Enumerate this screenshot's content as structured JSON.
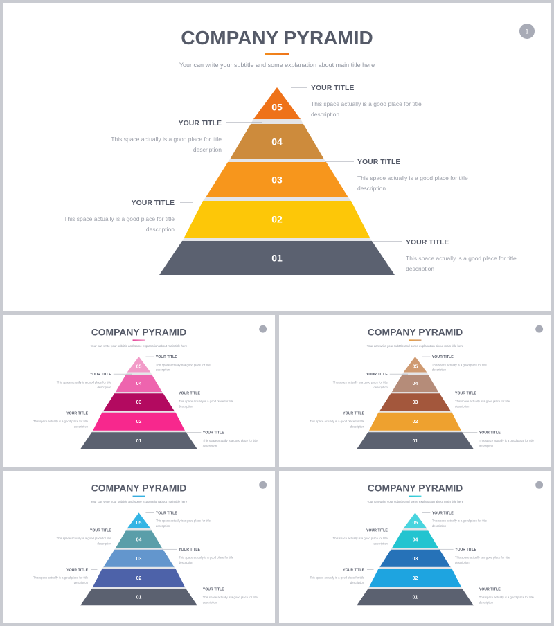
{
  "title": "COMPANY PYRAMID",
  "subtitle": "Your can write your subtitle and some explanation about main title here",
  "page_number": "1",
  "item_title": "YOUR TITLE",
  "item_desc_line1": "This space actually is a good place for title",
  "item_desc_line2": "description",
  "levels": [
    "05",
    "04",
    "03",
    "02",
    "01"
  ],
  "slides": [
    {
      "name": "slide-orange",
      "accent": "#f28b1c",
      "layer_colors": [
        "#ee7219",
        "#cd8b3c",
        "#f7961c",
        "#fdc708",
        "#5b6170"
      ]
    },
    {
      "name": "slide-pink",
      "accent": "#e0318d",
      "layer_colors": [
        "#f29bc8",
        "#ee64ae",
        "#b30a60",
        "#f7288d",
        "#5b6170"
      ]
    },
    {
      "name": "slide-brown",
      "accent": "#e6942a",
      "layer_colors": [
        "#cf9a71",
        "#b58c79",
        "#a3573c",
        "#eea12f",
        "#5b6170"
      ]
    },
    {
      "name": "slide-blue",
      "accent": "#3aa9dc",
      "layer_colors": [
        "#33b4e4",
        "#5a9ea9",
        "#6396cd",
        "#4d62a9",
        "#5b6170"
      ]
    },
    {
      "name": "slide-cyan",
      "accent": "#2cc5d4",
      "layer_colors": [
        "#48d4de",
        "#23c4d0",
        "#2672b8",
        "#1ea4e0",
        "#5b6170"
      ]
    }
  ]
}
